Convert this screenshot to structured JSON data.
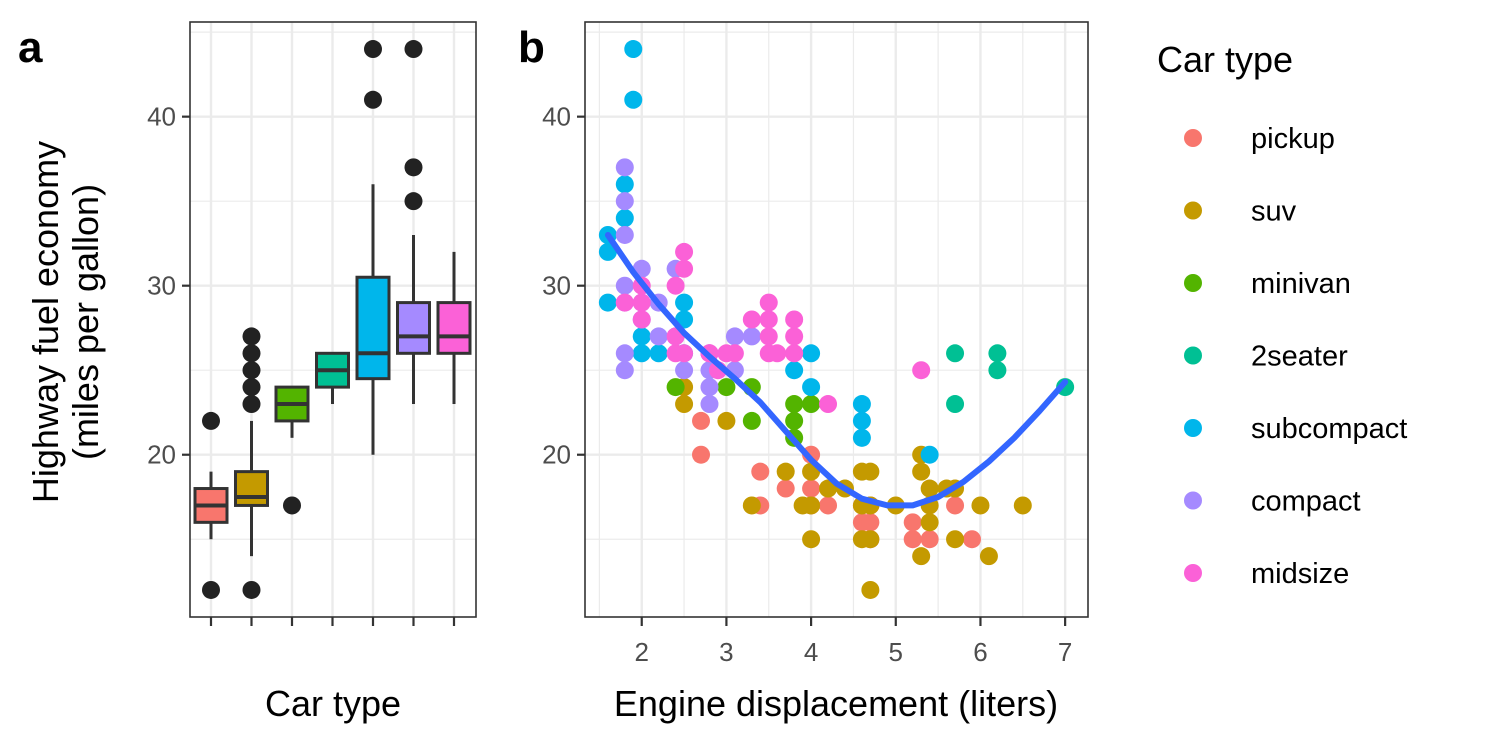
{
  "chart_data": [
    {
      "panel": "a",
      "type": "box",
      "xlabel": "Car type",
      "ylabel": [
        "Highway fuel economy",
        "(miles per gallon)"
      ],
      "categories": [
        "pickup",
        "suv",
        "minivan",
        "2seater",
        "subcompact",
        "compact",
        "midsize"
      ],
      "ylim": [
        10.4,
        45.6
      ],
      "yticks": [
        20,
        30,
        40
      ],
      "boxes": [
        {
          "category": "pickup",
          "whisker_low": 15,
          "q1": 16,
          "median": 17,
          "q3": 18,
          "whisker_high": 19,
          "outliers": [
            12,
            22
          ]
        },
        {
          "category": "suv",
          "whisker_low": 14,
          "q1": 17,
          "median": 17.5,
          "q3": 19,
          "whisker_high": 22,
          "outliers": [
            12,
            23,
            24,
            25,
            26,
            27
          ]
        },
        {
          "category": "minivan",
          "whisker_low": 21,
          "q1": 22,
          "median": 23,
          "q3": 24,
          "whisker_high": 24,
          "outliers": [
            17
          ]
        },
        {
          "category": "2seater",
          "whisker_low": 23,
          "q1": 24,
          "median": 25,
          "q3": 26,
          "whisker_high": 26,
          "outliers": []
        },
        {
          "category": "subcompact",
          "whisker_low": 20,
          "q1": 24.5,
          "median": 26,
          "q3": 30.5,
          "whisker_high": 36,
          "outliers": [
            41,
            44
          ]
        },
        {
          "category": "compact",
          "whisker_low": 23,
          "q1": 26,
          "median": 27,
          "q3": 29,
          "whisker_high": 33,
          "outliers": [
            35,
            37,
            44
          ]
        },
        {
          "category": "midsize",
          "whisker_low": 23,
          "q1": 26,
          "median": 27,
          "q3": 29,
          "whisker_high": 32,
          "outliers": []
        }
      ]
    },
    {
      "panel": "b",
      "type": "scatter",
      "xlabel": "Engine displacement (liters)",
      "ylabel": "",
      "xlim": [
        1.33,
        7.27
      ],
      "ylim": [
        10.4,
        45.6
      ],
      "xticks": [
        2,
        3,
        4,
        5,
        6,
        7
      ],
      "yticks": [
        20,
        30,
        40
      ],
      "series": [
        {
          "name": "pickup",
          "points": [
            [
              2.7,
              20
            ],
            [
              2.7,
              22
            ],
            [
              3.4,
              17
            ],
            [
              3.4,
              19
            ],
            [
              3.7,
              18
            ],
            [
              4.0,
              17
            ],
            [
              4.0,
              18
            ],
            [
              4.0,
              20
            ],
            [
              4.2,
              17
            ],
            [
              4.6,
              16
            ],
            [
              4.6,
              17
            ],
            [
              4.7,
              15
            ],
            [
              4.7,
              16
            ],
            [
              4.7,
              17
            ],
            [
              5.2,
              15
            ],
            [
              5.2,
              16
            ],
            [
              5.4,
              15
            ],
            [
              5.7,
              17
            ],
            [
              5.9,
              15
            ]
          ]
        },
        {
          "name": "suv",
          "points": [
            [
              2.5,
              23
            ],
            [
              2.5,
              24
            ],
            [
              3.0,
              22
            ],
            [
              3.3,
              17
            ],
            [
              3.7,
              19
            ],
            [
              3.9,
              17
            ],
            [
              4.0,
              15
            ],
            [
              4.0,
              17
            ],
            [
              4.0,
              19
            ],
            [
              4.2,
              18
            ],
            [
              4.4,
              18
            ],
            [
              4.6,
              15
            ],
            [
              4.6,
              17
            ],
            [
              4.6,
              19
            ],
            [
              4.7,
              12
            ],
            [
              4.7,
              15
            ],
            [
              4.7,
              17
            ],
            [
              4.7,
              19
            ],
            [
              5.0,
              17
            ],
            [
              5.3,
              14
            ],
            [
              5.3,
              19
            ],
            [
              5.3,
              20
            ],
            [
              5.4,
              16
            ],
            [
              5.4,
              17
            ],
            [
              5.4,
              18
            ],
            [
              5.6,
              18
            ],
            [
              5.7,
              15
            ],
            [
              5.7,
              18
            ],
            [
              6.0,
              17
            ],
            [
              6.1,
              14
            ],
            [
              6.5,
              17
            ]
          ]
        },
        {
          "name": "minivan",
          "points": [
            [
              2.4,
              24
            ],
            [
              3.0,
              24
            ],
            [
              3.3,
              22
            ],
            [
              3.3,
              24
            ],
            [
              3.8,
              21
            ],
            [
              3.8,
              22
            ],
            [
              3.8,
              23
            ],
            [
              4.0,
              23
            ]
          ]
        },
        {
          "name": "2seater",
          "points": [
            [
              5.7,
              23
            ],
            [
              5.7,
              26
            ],
            [
              6.2,
              25
            ],
            [
              6.2,
              26
            ],
            [
              7.0,
              24
            ]
          ]
        },
        {
          "name": "subcompact",
          "points": [
            [
              1.6,
              29
            ],
            [
              1.6,
              32
            ],
            [
              1.6,
              33
            ],
            [
              1.8,
              34
            ],
            [
              1.8,
              36
            ],
            [
              1.9,
              41
            ],
            [
              1.9,
              44
            ],
            [
              2.0,
              26
            ],
            [
              2.0,
              27
            ],
            [
              2.2,
              26
            ],
            [
              2.5,
              26
            ],
            [
              2.5,
              28
            ],
            [
              2.5,
              29
            ],
            [
              3.8,
              25
            ],
            [
              4.0,
              24
            ],
            [
              4.0,
              26
            ],
            [
              4.6,
              21
            ],
            [
              4.6,
              22
            ],
            [
              4.6,
              23
            ],
            [
              5.4,
              20
            ]
          ]
        },
        {
          "name": "compact",
          "points": [
            [
              1.8,
              25
            ],
            [
              1.8,
              26
            ],
            [
              1.8,
              29
            ],
            [
              1.8,
              30
            ],
            [
              1.8,
              33
            ],
            [
              1.8,
              35
            ],
            [
              1.8,
              37
            ],
            [
              2.0,
              28
            ],
            [
              2.0,
              29
            ],
            [
              2.0,
              31
            ],
            [
              2.2,
              27
            ],
            [
              2.2,
              29
            ],
            [
              2.4,
              27
            ],
            [
              2.4,
              31
            ],
            [
              2.5,
              25
            ],
            [
              2.8,
              23
            ],
            [
              2.8,
              24
            ],
            [
              2.8,
              25
            ],
            [
              2.8,
              26
            ],
            [
              3.1,
              25
            ],
            [
              3.1,
              27
            ],
            [
              3.3,
              27
            ]
          ]
        },
        {
          "name": "midsize",
          "points": [
            [
              1.8,
              29
            ],
            [
              2.0,
              28
            ],
            [
              2.0,
              29
            ],
            [
              2.0,
              30
            ],
            [
              2.4,
              26
            ],
            [
              2.4,
              27
            ],
            [
              2.4,
              30
            ],
            [
              2.5,
              26
            ],
            [
              2.5,
              31
            ],
            [
              2.5,
              32
            ],
            [
              2.8,
              26
            ],
            [
              2.8,
              26
            ],
            [
              2.9,
              25
            ],
            [
              3.0,
              26
            ],
            [
              3.1,
              26
            ],
            [
              3.3,
              28
            ],
            [
              3.5,
              26
            ],
            [
              3.5,
              27
            ],
            [
              3.5,
              28
            ],
            [
              3.5,
              29
            ],
            [
              3.6,
              26
            ],
            [
              3.8,
              26
            ],
            [
              3.8,
              27
            ],
            [
              3.8,
              28
            ],
            [
              4.2,
              23
            ],
            [
              5.3,
              25
            ]
          ]
        }
      ],
      "smooth_fit": {
        "x": [
          1.6,
          1.9,
          2.2,
          2.5,
          2.8,
          3.1,
          3.4,
          3.7,
          4.0,
          4.3,
          4.6,
          4.9,
          5.2,
          5.5,
          5.8,
          6.1,
          6.4,
          6.7,
          7.0
        ],
        "y": [
          33,
          30.8,
          28.9,
          27.2,
          25.8,
          24.5,
          23.1,
          21.4,
          19.7,
          18.3,
          17.4,
          17.0,
          17.0,
          17.5,
          18.4,
          19.6,
          21.0,
          22.6,
          24.3
        ],
        "color": "#3366ff"
      },
      "legend": {
        "title": "Car type",
        "position": "right"
      }
    }
  ],
  "colors": {
    "pickup": "#f8766d",
    "suv": "#c49a00",
    "minivan": "#53b400",
    "2seater": "#00c094",
    "subcompact": "#00b6eb",
    "compact": "#a58aff",
    "midsize": "#fb61d7"
  },
  "panel_tags": {
    "a": "a",
    "b": "b"
  }
}
